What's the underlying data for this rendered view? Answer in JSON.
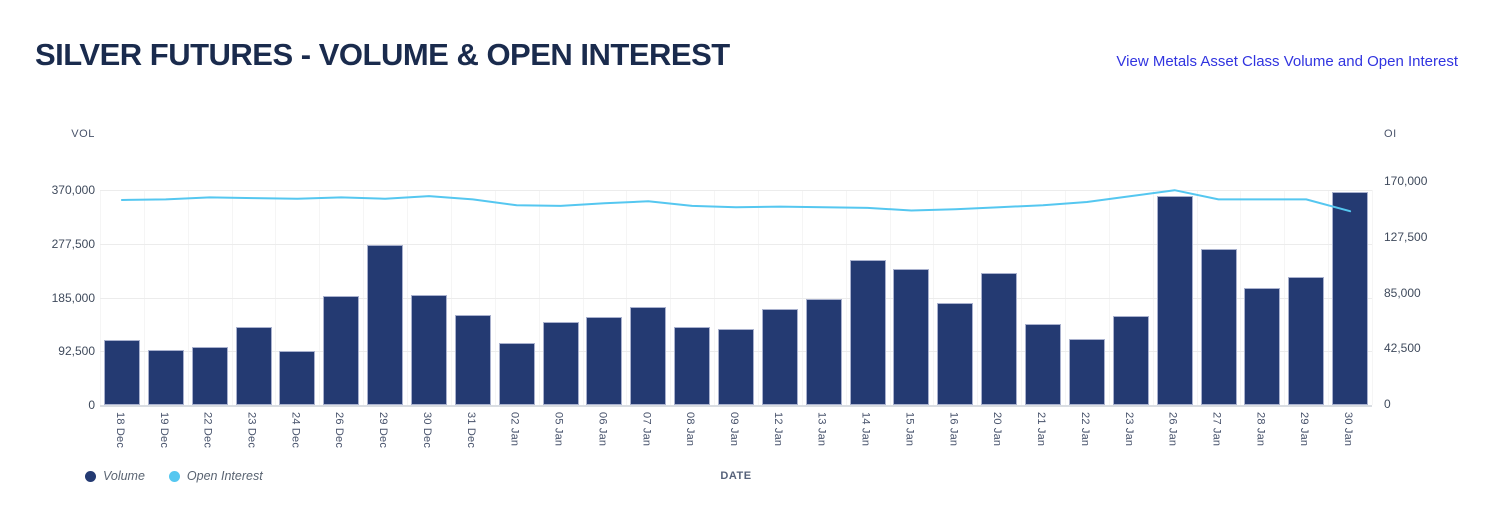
{
  "header": {
    "title": "SILVER FUTURES - VOLUME & OPEN INTEREST",
    "link": "View Metals Asset Class Volume and Open Interest"
  },
  "colors": {
    "title": "#1A2B4D",
    "link": "#3134E0",
    "volume_bar": "#243A72",
    "open_interest_line": "#55C7F0",
    "gridline": "#ECECEC",
    "axis_text": "#3F4A5C"
  },
  "chart_data": {
    "type": "bar",
    "subtype": "dual-axis bar+line",
    "title": "SILVER FUTURES - VOLUME & OPEN INTEREST",
    "xlabel": "DATE",
    "grid": true,
    "legend_position": "bottom-left",
    "categories": [
      "18 Dec",
      "19 Dec",
      "22 Dec",
      "23 Dec",
      "24 Dec",
      "26 Dec",
      "29 Dec",
      "30 Dec",
      "31 Dec",
      "02 Jan",
      "05 Jan",
      "06 Jan",
      "07 Jan",
      "08 Jan",
      "09 Jan",
      "12 Jan",
      "13 Jan",
      "14 Jan",
      "15 Jan",
      "16 Jan",
      "20 Jan",
      "21 Jan",
      "22 Jan",
      "23 Jan",
      "26 Jan",
      "27 Jan",
      "28 Jan",
      "29 Jan",
      "30 Jan"
    ],
    "series": [
      {
        "name": "Volume",
        "type": "bar",
        "axis": "left",
        "color": "#243A72",
        "values": [
          112000,
          95000,
          100000,
          134000,
          93000,
          188000,
          275000,
          190000,
          155000,
          106000,
          143000,
          151000,
          168000,
          135000,
          131000,
          165000,
          183000,
          249000,
          234000,
          176000,
          227000,
          140000,
          114000,
          154000,
          360000,
          269000,
          202000,
          220000,
          367000
        ]
      },
      {
        "name": "Open Interest",
        "type": "line",
        "axis": "right",
        "color": "#55C7F0",
        "values": [
          155500,
          156000,
          157500,
          157000,
          156500,
          157500,
          156500,
          158500,
          156000,
          151500,
          151000,
          153000,
          154500,
          151000,
          150000,
          150500,
          150000,
          149500,
          147500,
          148500,
          150000,
          151500,
          154000,
          158500,
          163000,
          156000,
          156000,
          156000,
          147000
        ]
      }
    ],
    "left_axis": {
      "title": "VOL",
      "min": 0,
      "max": 370000,
      "tick_values": [
        0,
        92500,
        185000,
        277500,
        370000
      ],
      "tick_labels": [
        "0",
        "92,500",
        "185,000",
        "277,500",
        "370,000"
      ]
    },
    "right_axis": {
      "title": "OI",
      "min": 0,
      "max": 170000,
      "tick_values": [
        0,
        42500,
        85000,
        127500,
        170000
      ],
      "tick_labels": [
        "0",
        "42,500",
        "85,000",
        "127,500",
        "170,000"
      ]
    },
    "x_axis": {
      "title": "DATE"
    }
  }
}
